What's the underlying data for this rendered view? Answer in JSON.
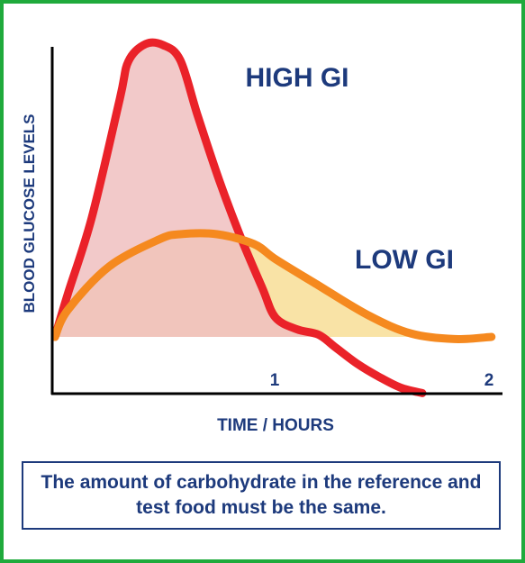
{
  "chart_data": {
    "type": "area",
    "xlabel": "TIME / HOURS",
    "ylabel": "BLOOD GLUCOSE LEVELS",
    "tick_labels": [
      "1",
      "2"
    ],
    "xlim": [
      0,
      2.06
    ],
    "grid": false,
    "legend": "none",
    "series": [
      {
        "name": "HIGH GI",
        "color": "#ea2229",
        "fill": "#f0c0c0",
        "x": [
          0,
          0.06,
          0.17,
          0.3,
          0.34,
          0.42,
          0.5,
          0.58,
          0.66,
          0.76,
          0.86,
          0.96,
          1.02,
          1.12,
          1.22,
          1.3,
          1.4,
          1.5,
          1.6,
          1.7
        ],
        "y": [
          0.0,
          0.4,
          1.1,
          2.2,
          2.55,
          2.71,
          2.7,
          2.56,
          2.05,
          1.45,
          0.92,
          0.45,
          0.18,
          0.07,
          0.02,
          -0.1,
          -0.25,
          -0.37,
          -0.47,
          -0.52
        ]
      },
      {
        "name": "LOW GI",
        "color": "#f5891f",
        "fill": "#f9e3a6",
        "x": [
          0,
          0.06,
          0.25,
          0.48,
          0.58,
          0.75,
          0.92,
          1.02,
          1.2,
          1.45,
          1.65,
          1.85,
          2.02
        ],
        "y": [
          0.0,
          0.25,
          0.65,
          0.9,
          0.95,
          0.95,
          0.86,
          0.72,
          0.5,
          0.2,
          0.03,
          -0.02,
          0.0
        ]
      }
    ],
    "annotations": [
      "HIGH GI",
      "LOW GI"
    ]
  },
  "note": "The amount of carbohydrate in the reference and test food must be the same.",
  "colors": {
    "border": "#1faa3c",
    "text": "#1d3a7c",
    "axis": "#000000"
  }
}
